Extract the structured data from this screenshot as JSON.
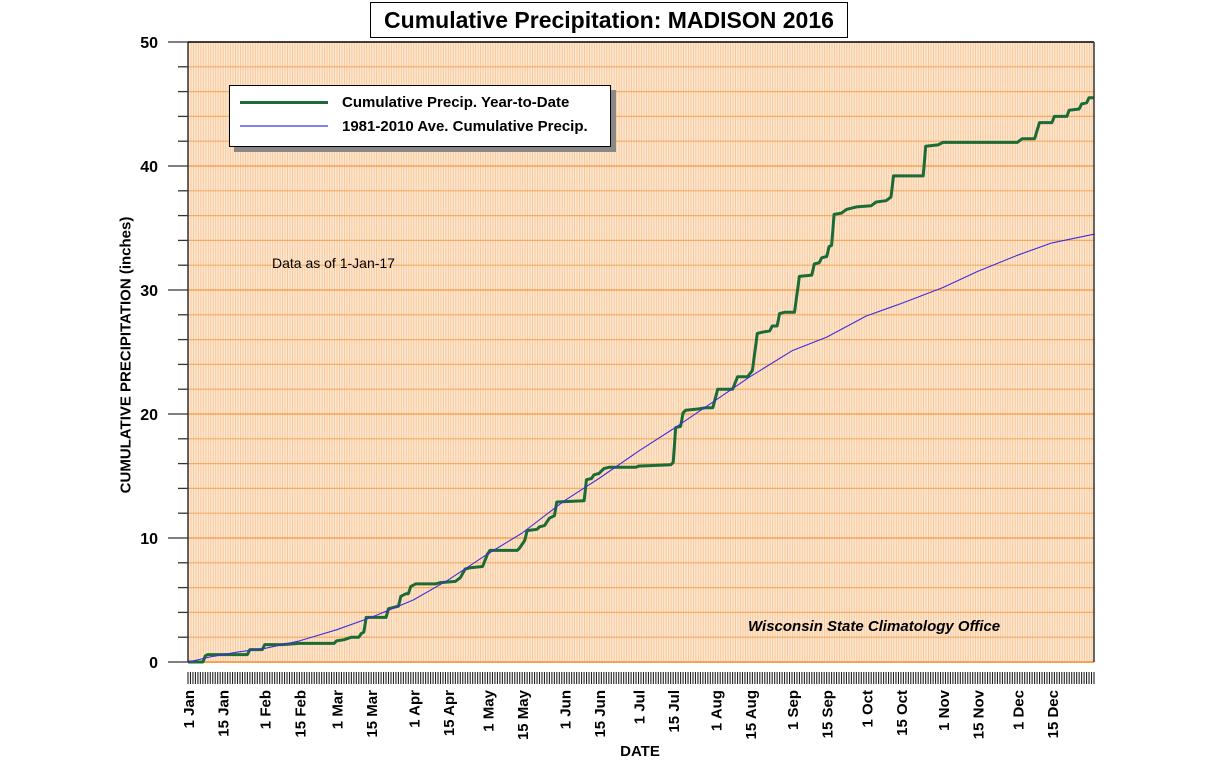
{
  "chart_data": {
    "type": "line",
    "title": "Cumulative Precipitation: MADISON 2016",
    "xlabel": "DATE",
    "ylabel": "CUMULATIVE PRECIPITATION (inches)",
    "ylim": [
      0,
      50
    ],
    "xlim_day_of_year": [
      0,
      366
    ],
    "y_major_ticks": [
      0,
      10,
      20,
      30,
      40,
      50
    ],
    "y_minor_step": 2,
    "grid": true,
    "legend_position": "top-left",
    "x_tick_labels": [
      {
        "label": "1 Jan",
        "day": 0
      },
      {
        "label": "15 Jan",
        "day": 14
      },
      {
        "label": "1 Feb",
        "day": 31
      },
      {
        "label": "15 Feb",
        "day": 45
      },
      {
        "label": "1 Mar",
        "day": 60
      },
      {
        "label": "15 Mar",
        "day": 74
      },
      {
        "label": "1 Apr",
        "day": 91
      },
      {
        "label": "15 Apr",
        "day": 105
      },
      {
        "label": "1 May",
        "day": 121
      },
      {
        "label": "15 May",
        "day": 135
      },
      {
        "label": "1 Jun",
        "day": 152
      },
      {
        "label": "15 Jun",
        "day": 166
      },
      {
        "label": "1 Jul",
        "day": 182
      },
      {
        "label": "15 Jul",
        "day": 196
      },
      {
        "label": "1 Aug",
        "day": 213
      },
      {
        "label": "15 Aug",
        "day": 227
      },
      {
        "label": "1 Sep",
        "day": 244
      },
      {
        "label": "15 Sep",
        "day": 258
      },
      {
        "label": "1 Oct",
        "day": 274
      },
      {
        "label": "15 Oct",
        "day": 288
      },
      {
        "label": "1 Nov",
        "day": 305
      },
      {
        "label": "15 Nov",
        "day": 319
      },
      {
        "label": "1 Dec",
        "day": 335
      },
      {
        "label": "15 Dec",
        "day": 349
      }
    ],
    "series": [
      {
        "name": "Cumulative Precip. Year-to-Date",
        "color": "#1a6b35",
        "points": [
          [
            0,
            0
          ],
          [
            6,
            0
          ],
          [
            7,
            0.5
          ],
          [
            8,
            0.6
          ],
          [
            24,
            0.6
          ],
          [
            25,
            1.0
          ],
          [
            30,
            1.0
          ],
          [
            31,
            1.4
          ],
          [
            38,
            1.4
          ],
          [
            45,
            1.5
          ],
          [
            59,
            1.5
          ],
          [
            60,
            1.7
          ],
          [
            63,
            1.8
          ],
          [
            66,
            2.0
          ],
          [
            69,
            2.0
          ],
          [
            70,
            2.3
          ],
          [
            71,
            2.4
          ],
          [
            72,
            3.6
          ],
          [
            80,
            3.6
          ],
          [
            81,
            4.3
          ],
          [
            85,
            4.5
          ],
          [
            86,
            5.3
          ],
          [
            88,
            5.5
          ],
          [
            89,
            5.5
          ],
          [
            90,
            6.1
          ],
          [
            92,
            6.3
          ],
          [
            100,
            6.3
          ],
          [
            102,
            6.4
          ],
          [
            108,
            6.5
          ],
          [
            110,
            6.8
          ],
          [
            112,
            7.5
          ],
          [
            114,
            7.6
          ],
          [
            119,
            7.7
          ],
          [
            121,
            8.7
          ],
          [
            122,
            9.0
          ],
          [
            133,
            9.0
          ],
          [
            134,
            9.2
          ],
          [
            136,
            9.8
          ],
          [
            137,
            10.6
          ],
          [
            141,
            10.7
          ],
          [
            142,
            10.9
          ],
          [
            144,
            11.0
          ],
          [
            146,
            11.6
          ],
          [
            148,
            11.8
          ],
          [
            149,
            12.9
          ],
          [
            160,
            13.0
          ],
          [
            161,
            14.7
          ],
          [
            163,
            14.8
          ],
          [
            164,
            15.1
          ],
          [
            166,
            15.2
          ],
          [
            168,
            15.6
          ],
          [
            170,
            15.7
          ],
          [
            181,
            15.7
          ],
          [
            182,
            15.8
          ],
          [
            195,
            15.9
          ],
          [
            196,
            16.1
          ],
          [
            197,
            18.9
          ],
          [
            199,
            19.0
          ],
          [
            200,
            20.1
          ],
          [
            201,
            20.3
          ],
          [
            206,
            20.4
          ],
          [
            209,
            20.5
          ],
          [
            212,
            20.5
          ],
          [
            214,
            22.0
          ],
          [
            220,
            22.0
          ],
          [
            221,
            22.5
          ],
          [
            222,
            23.0
          ],
          [
            226,
            23.0
          ],
          [
            228,
            23.5
          ],
          [
            230,
            26.5
          ],
          [
            232,
            26.6
          ],
          [
            235,
            26.7
          ],
          [
            236,
            27.1
          ],
          [
            238,
            27.1
          ],
          [
            239,
            28.1
          ],
          [
            241,
            28.2
          ],
          [
            245,
            28.2
          ],
          [
            247,
            31.1
          ],
          [
            252,
            31.2
          ],
          [
            253,
            32.1
          ],
          [
            255,
            32.2
          ],
          [
            256,
            32.6
          ],
          [
            258,
            32.7
          ],
          [
            259,
            33.5
          ],
          [
            260,
            33.6
          ],
          [
            261,
            36.1
          ],
          [
            264,
            36.2
          ],
          [
            266,
            36.5
          ],
          [
            268,
            36.6
          ],
          [
            270,
            36.7
          ],
          [
            276,
            36.8
          ],
          [
            278,
            37.1
          ],
          [
            282,
            37.2
          ],
          [
            284,
            37.5
          ],
          [
            285,
            39.2
          ],
          [
            297,
            39.2
          ],
          [
            298,
            41.6
          ],
          [
            303,
            41.7
          ],
          [
            305,
            41.9
          ],
          [
            335,
            41.9
          ],
          [
            337,
            42.2
          ],
          [
            342,
            42.2
          ],
          [
            344,
            43.5
          ],
          [
            349,
            43.5
          ],
          [
            350,
            44.0
          ],
          [
            355,
            44.0
          ],
          [
            356,
            44.5
          ],
          [
            360,
            44.6
          ],
          [
            361,
            45.0
          ],
          [
            363,
            45.1
          ],
          [
            364,
            45.5
          ],
          [
            366,
            45.5
          ]
        ]
      },
      {
        "name": "1981-2010 Ave. Cumulative Precip.",
        "color": "#3a2fdc",
        "points": [
          [
            0,
            0
          ],
          [
            10,
            0.45
          ],
          [
            20,
            0.8
          ],
          [
            31,
            1.1
          ],
          [
            45,
            1.7
          ],
          [
            60,
            2.6
          ],
          [
            74,
            3.6
          ],
          [
            91,
            5.0
          ],
          [
            105,
            6.6
          ],
          [
            121,
            8.7
          ],
          [
            135,
            10.4
          ],
          [
            152,
            13.0
          ],
          [
            166,
            14.8
          ],
          [
            182,
            17.0
          ],
          [
            196,
            18.8
          ],
          [
            213,
            21.1
          ],
          [
            227,
            23.0
          ],
          [
            244,
            25.1
          ],
          [
            258,
            26.2
          ],
          [
            274,
            27.9
          ],
          [
            288,
            28.9
          ],
          [
            305,
            30.2
          ],
          [
            319,
            31.5
          ],
          [
            335,
            32.8
          ],
          [
            349,
            33.8
          ],
          [
            366,
            34.5
          ]
        ]
      }
    ],
    "annotations": [
      "Data as of 1-Jan-17",
      "Wisconsin State Climatology Office"
    ]
  },
  "colors": {
    "plot_bg": "#fde3c8",
    "hatch": "#f8c08a",
    "gridline": "#f5a355",
    "axis": "#000000"
  }
}
